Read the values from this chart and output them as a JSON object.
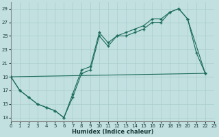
{
  "xlabel": "Humidex (Indice chaleur)",
  "bg_color": "#c2e0e0",
  "line_color": "#1a6b5a",
  "xlim": [
    0,
    23
  ],
  "ylim": [
    12.5,
    30
  ],
  "xticks": [
    0,
    1,
    2,
    3,
    4,
    5,
    6,
    7,
    8,
    9,
    10,
    11,
    12,
    13,
    14,
    15,
    16,
    17,
    18,
    19,
    20,
    21,
    22,
    23
  ],
  "yticks": [
    13,
    15,
    17,
    19,
    21,
    23,
    25,
    27,
    29
  ],
  "grid_color": "#a8cccc",
  "curve1_x": [
    0,
    1,
    2,
    3,
    4,
    5,
    6,
    7,
    8,
    9,
    10,
    11,
    12,
    13,
    14,
    15,
    16,
    17,
    18,
    19,
    20,
    22
  ],
  "curve1_y": [
    19,
    17,
    16,
    15,
    14.5,
    14,
    13,
    16,
    19.5,
    20,
    25,
    23.5,
    25,
    25,
    25.5,
    26,
    27,
    27,
    28.5,
    29,
    27.5,
    19.5
  ],
  "curve2_x": [
    0,
    1,
    2,
    3,
    4,
    5,
    6,
    7,
    8,
    9,
    10,
    11,
    12,
    13,
    14,
    15,
    16,
    17,
    18,
    19,
    20,
    21,
    22
  ],
  "curve2_y": [
    19,
    17,
    16,
    15,
    14.5,
    14,
    13,
    16.5,
    20,
    20.5,
    25.5,
    24,
    25,
    25.5,
    26,
    26.5,
    27.5,
    27.5,
    28.5,
    29,
    27.5,
    22.5,
    19.5
  ],
  "trend_x": [
    0,
    22
  ],
  "trend_y": [
    19,
    19.5
  ]
}
